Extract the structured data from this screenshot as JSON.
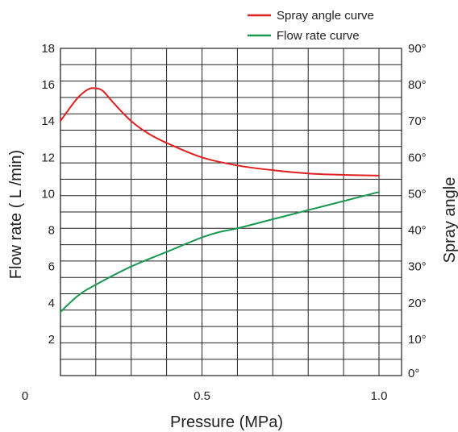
{
  "chart_data": {
    "type": "line",
    "title": "",
    "xlabel": "Pressure (MPa)",
    "ylabel_left": "Flow rate ( L /min)",
    "ylabel_right": "Spray angle",
    "x_ticks": [
      {
        "value": 0,
        "label": "0"
      },
      {
        "value": 0.5,
        "label": "0.5"
      },
      {
        "value": 1.0,
        "label": "1.0"
      }
    ],
    "y_left_ticks": [
      "2",
      "4",
      "6",
      "8",
      "10",
      "12",
      "14",
      "16",
      "18"
    ],
    "y_right_ticks": [
      "0°",
      "10°",
      "20°",
      "30°",
      "40°",
      "50°",
      "60°",
      "70°",
      "80°",
      "90°"
    ],
    "xlim": [
      0,
      1.0
    ],
    "ylim_left": [
      0,
      18
    ],
    "ylim_right": [
      0,
      90
    ],
    "grid": true,
    "legend_position": "top-right",
    "series": [
      {
        "name": "Spray angle curve",
        "axis": "right",
        "color": "#e02020",
        "x": [
          0.1,
          0.12,
          0.15,
          0.18,
          0.2,
          0.22,
          0.25,
          0.3,
          0.35,
          0.4,
          0.5,
          0.6,
          0.7,
          0.8,
          0.9,
          1.0
        ],
        "y": [
          70,
          72.7,
          76.5,
          78.8,
          79,
          78.3,
          75,
          70,
          66.5,
          64,
          60,
          57.8,
          56.5,
          55.6,
          55.2,
          55
        ]
      },
      {
        "name": "Flow rate curve",
        "axis": "left",
        "color": "#1a9850",
        "x": [
          0.1,
          0.15,
          0.2,
          0.3,
          0.4,
          0.5,
          0.55,
          0.6,
          0.7,
          0.8,
          0.9,
          1.0
        ],
        "y": [
          3.5,
          4.4,
          5,
          6,
          6.8,
          7.6,
          7.9,
          8.1,
          8.6,
          9.1,
          9.6,
          10.1
        ]
      }
    ]
  }
}
